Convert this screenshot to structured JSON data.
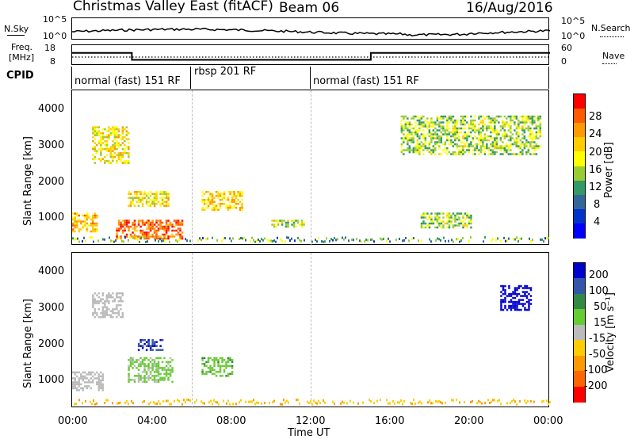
{
  "header": {
    "title": "Christmas Valley East (fitACF)",
    "beam": "Beam 06",
    "date": "16/Aug/2016"
  },
  "noise_panel": {
    "left_label": "N.Sky",
    "right_label": "N.Search",
    "left_ticks": [
      "10^5",
      "10^0"
    ],
    "right_ticks": [
      "10^5",
      "10^0"
    ]
  },
  "freq_panel": {
    "left_label_1": "Freq.",
    "left_label_2": "[MHz]",
    "right_label": "Nave",
    "left_ticks": [
      "18",
      "8"
    ],
    "right_ticks": [
      "60",
      "0"
    ]
  },
  "cpid_panel": {
    "label": "CPID",
    "segments": [
      {
        "name": "normal (fast) 151 RF",
        "start_h": 0,
        "end_h": 6
      },
      {
        "name": "rbsp 201 RF",
        "start_h": 6,
        "end_h": 12
      },
      {
        "name": "normal (fast) 151 RF",
        "start_h": 12,
        "end_h": 24
      }
    ]
  },
  "power_panel": {
    "ylabel": "Slant Range [km]",
    "yticks": [
      "4000",
      "3000",
      "2000",
      "1000"
    ],
    "colorbar_label": "Power [dB]",
    "colorbar_ticks": [
      "28",
      "24",
      "20",
      "16",
      "12",
      "8",
      "4"
    ],
    "colorbar_colors": [
      "#ff0000",
      "#ff5a00",
      "#ff9900",
      "#ffcc00",
      "#ffff00",
      "#99cc33",
      "#339966",
      "#336699",
      "#0033cc",
      "#0000ff"
    ]
  },
  "velocity_panel": {
    "ylabel": "Slant Range [km]",
    "yticks": [
      "4000",
      "3000",
      "2000",
      "1000"
    ],
    "colorbar_label": "Velocity [m s⁻¹]",
    "colorbar_ticks": [
      "200",
      "100",
      "50",
      "15",
      "-15",
      "-50",
      "-100",
      "-200"
    ],
    "colorbar_colors": [
      "#0000cc",
      "#3355aa",
      "#338844",
      "#66cc33",
      "#bbbbbb",
      "#ffcc00",
      "#ff9900",
      "#ff6600",
      "#ff0000"
    ]
  },
  "x_axis": {
    "label": "Time UT",
    "ticks": [
      "00:00",
      "04:00",
      "08:00",
      "12:00",
      "16:00",
      "20:00",
      "00:00"
    ]
  },
  "chart_data": {
    "type": "heatmap",
    "title": "Christmas Valley East (fitACF)",
    "xlabel": "Time UT",
    "ylabel": "Slant Range [km]",
    "xlim_hours": [
      0,
      24
    ],
    "ylim_km": [
      180,
      4500
    ],
    "frequency_series": [
      {
        "start_h": 0,
        "end_h": 3,
        "value_mhz": 14.5
      },
      {
        "start_h": 3,
        "end_h": 15,
        "value_mhz": 10.5
      },
      {
        "start_h": 15,
        "end_h": 24,
        "value_mhz": 14.5
      }
    ],
    "nave_series": [
      {
        "start_h": 0,
        "end_h": 24,
        "value": 20
      }
    ],
    "power_regions": [
      {
        "t0": 0.0,
        "t1": 1.2,
        "r0": 600,
        "r1": 1100,
        "power_db": 22
      },
      {
        "t0": 1.0,
        "t1": 2.8,
        "r0": 2500,
        "r1": 3500,
        "power_db": 18
      },
      {
        "t0": 2.2,
        "t1": 5.5,
        "r0": 400,
        "r1": 900,
        "power_db": 26
      },
      {
        "t0": 2.8,
        "t1": 4.8,
        "r0": 1300,
        "r1": 1700,
        "power_db": 18
      },
      {
        "t0": 6.5,
        "t1": 8.5,
        "r0": 1200,
        "r1": 1700,
        "power_db": 20
      },
      {
        "t0": 10.0,
        "t1": 11.6,
        "r0": 700,
        "r1": 900,
        "power_db": 14
      },
      {
        "t0": 16.5,
        "t1": 23.5,
        "r0": 2700,
        "r1": 3800,
        "power_db": 14
      },
      {
        "t0": 17.5,
        "t1": 20.0,
        "r0": 700,
        "r1": 1100,
        "power_db": 14
      }
    ],
    "velocity_regions": [
      {
        "t0": 0.0,
        "t1": 1.5,
        "r0": 700,
        "r1": 1200,
        "velocity": 0
      },
      {
        "t0": 1.0,
        "t1": 2.5,
        "r0": 2700,
        "r1": 3400,
        "velocity": 0
      },
      {
        "t0": 3.3,
        "t1": 4.5,
        "r0": 1800,
        "r1": 2100,
        "velocity": 150
      },
      {
        "t0": 2.8,
        "t1": 5.0,
        "r0": 900,
        "r1": 1600,
        "velocity": 20
      },
      {
        "t0": 6.5,
        "t1": 8.0,
        "r0": 1100,
        "r1": 1600,
        "velocity": 25
      },
      {
        "t0": 21.5,
        "t1": 23.0,
        "r0": 2900,
        "r1": 3600,
        "velocity": 220
      }
    ]
  }
}
